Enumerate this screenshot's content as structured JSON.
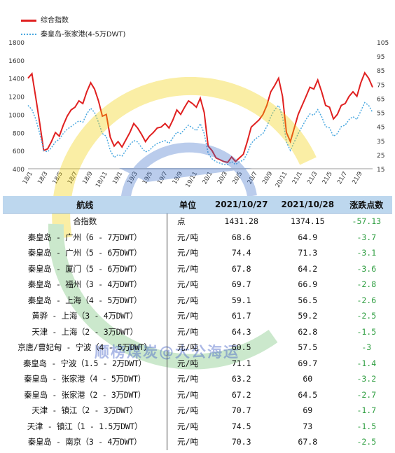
{
  "colors": {
    "composite": "#e02020",
    "qhd_zjg": "#4aa8e0",
    "header_bg": "#bdd7ee",
    "change": "#2e9e40"
  },
  "legend": {
    "series1": "综合指数",
    "series2": "秦皇岛-张家港(4-5万DWT)"
  },
  "watermark": "顺榜煤炭@大公海运",
  "chart_data": {
    "type": "line",
    "x_tick_labels": [
      "18/1",
      "18/3",
      "18/5",
      "18/7",
      "18/9",
      "18/11",
      "19/1",
      "19/3",
      "19/5",
      "19/7",
      "19/9",
      "19/11",
      "20/1",
      "20/3",
      "20/5",
      "20/7",
      "20/9",
      "20/11",
      "21/1",
      "21/3",
      "21/5",
      "21/7",
      "21/9"
    ],
    "y_left": {
      "min": 400,
      "max": 1800,
      "ticks": [
        "400",
        "600",
        "800",
        "1000",
        "1200",
        "1400",
        "1600",
        "1800"
      ]
    },
    "y_right": {
      "min": 15,
      "max": 105,
      "ticks": [
        "15",
        "25",
        "35",
        "45",
        "55",
        "65",
        "75",
        "85",
        "95",
        "105"
      ]
    },
    "series": [
      {
        "name": "综合指数",
        "axis": "left",
        "color": "#e02020",
        "values": [
          1400,
          1450,
          1180,
          900,
          600,
          620,
          700,
          800,
          760,
          880,
          980,
          1050,
          1080,
          1150,
          1120,
          1250,
          1350,
          1280,
          1150,
          980,
          1000,
          750,
          650,
          700,
          640,
          720,
          800,
          900,
          850,
          780,
          700,
          760,
          800,
          850,
          860,
          900,
          850,
          940,
          1050,
          1000,
          1080,
          1150,
          1120,
          1080,
          1180,
          1020,
          650,
          600,
          520,
          500,
          480,
          470,
          530,
          480,
          520,
          560,
          700,
          860,
          900,
          940,
          1000,
          1100,
          1250,
          1320,
          1400,
          1200,
          800,
          700,
          850,
          1000,
          1100,
          1200,
          1300,
          1280,
          1380,
          1250,
          1100,
          1080,
          950,
          1000,
          1100,
          1120,
          1200,
          1250,
          1200,
          1350,
          1460,
          1400,
          1300
        ]
      },
      {
        "name": "秦皇岛-张家港(4-5万DWT)",
        "axis": "right",
        "color": "#4aa8e0",
        "values": [
          60,
          57,
          50,
          40,
          28,
          27,
          30,
          34,
          36,
          40,
          43,
          45,
          47,
          49,
          48,
          54,
          58,
          55,
          48,
          40,
          38,
          28,
          23,
          25,
          24,
          28,
          32,
          35,
          34,
          30,
          27,
          28,
          31,
          33,
          34,
          35,
          33,
          37,
          41,
          40,
          43,
          46,
          44,
          42,
          47,
          40,
          26,
          22,
          20,
          19,
          18,
          18,
          20,
          18,
          20,
          21,
          26,
          33,
          36,
          38,
          40,
          45,
          52,
          57,
          60,
          52,
          34,
          28,
          34,
          40,
          45,
          50,
          54,
          53,
          57,
          52,
          45,
          44,
          38,
          40,
          45,
          46,
          50,
          52,
          50,
          56,
          62,
          60,
          55
        ]
      }
    ]
  },
  "table": {
    "headers": [
      "航线",
      "单位",
      "2021/10/27",
      "2021/10/28",
      "涨跌点数"
    ],
    "rows": [
      [
        "合指数",
        "点",
        "1431.28",
        "1374.15",
        "-57.13"
      ],
      [
        "秦皇岛 - 广州（6 - 7万DWT）",
        "元/吨",
        "68.6",
        "64.9",
        "-3.7"
      ],
      [
        "秦皇岛 - 广州（5 - 6万DWT）",
        "元/吨",
        "74.4",
        "71.3",
        "-3.1"
      ],
      [
        "秦皇岛 - 厦门（5 - 6万DWT）",
        "元/吨",
        "67.8",
        "64.2",
        "-3.6"
      ],
      [
        "秦皇岛 - 福州（3 - 4万DWT）",
        "元/吨",
        "69.7",
        "66.9",
        "-2.8"
      ],
      [
        "秦皇岛 - 上海（4 - 5万DWT）",
        "元/吨",
        "59.1",
        "56.5",
        "-2.6"
      ],
      [
        "黄骅 - 上海（3 - 4万DWT）",
        "元/吨",
        "61.7",
        "59.2",
        "-2.5"
      ],
      [
        "天津 - 上海（2 - 3万DWT）",
        "元/吨",
        "64.3",
        "62.8",
        "-1.5"
      ],
      [
        "京唐/曹妃甸 - 宁波（4 - 5万DWT）",
        "元/吨",
        "60.5",
        "57.5",
        "-3"
      ],
      [
        "秦皇岛 - 宁波（1.5 - 2万DWT）",
        "元/吨",
        "71.1",
        "69.7",
        "-1.4"
      ],
      [
        "秦皇岛 - 张家港（4 - 5万DWT）",
        "元/吨",
        "63.2",
        "60",
        "-3.2"
      ],
      [
        "秦皇岛 - 张家港（2 - 3万DWT）",
        "元/吨",
        "67.2",
        "64.5",
        "-2.7"
      ],
      [
        "天津 - 镇江（2 - 3万DWT）",
        "元/吨",
        "70.7",
        "69",
        "-1.7"
      ],
      [
        "天津 - 镇江（1 - 1.5万DWT）",
        "元/吨",
        "74.5",
        "73",
        "-1.5"
      ],
      [
        "秦皇岛 - 南京（3 - 4万DWT）",
        "元/吨",
        "70.3",
        "67.8",
        "-2.5"
      ]
    ]
  }
}
